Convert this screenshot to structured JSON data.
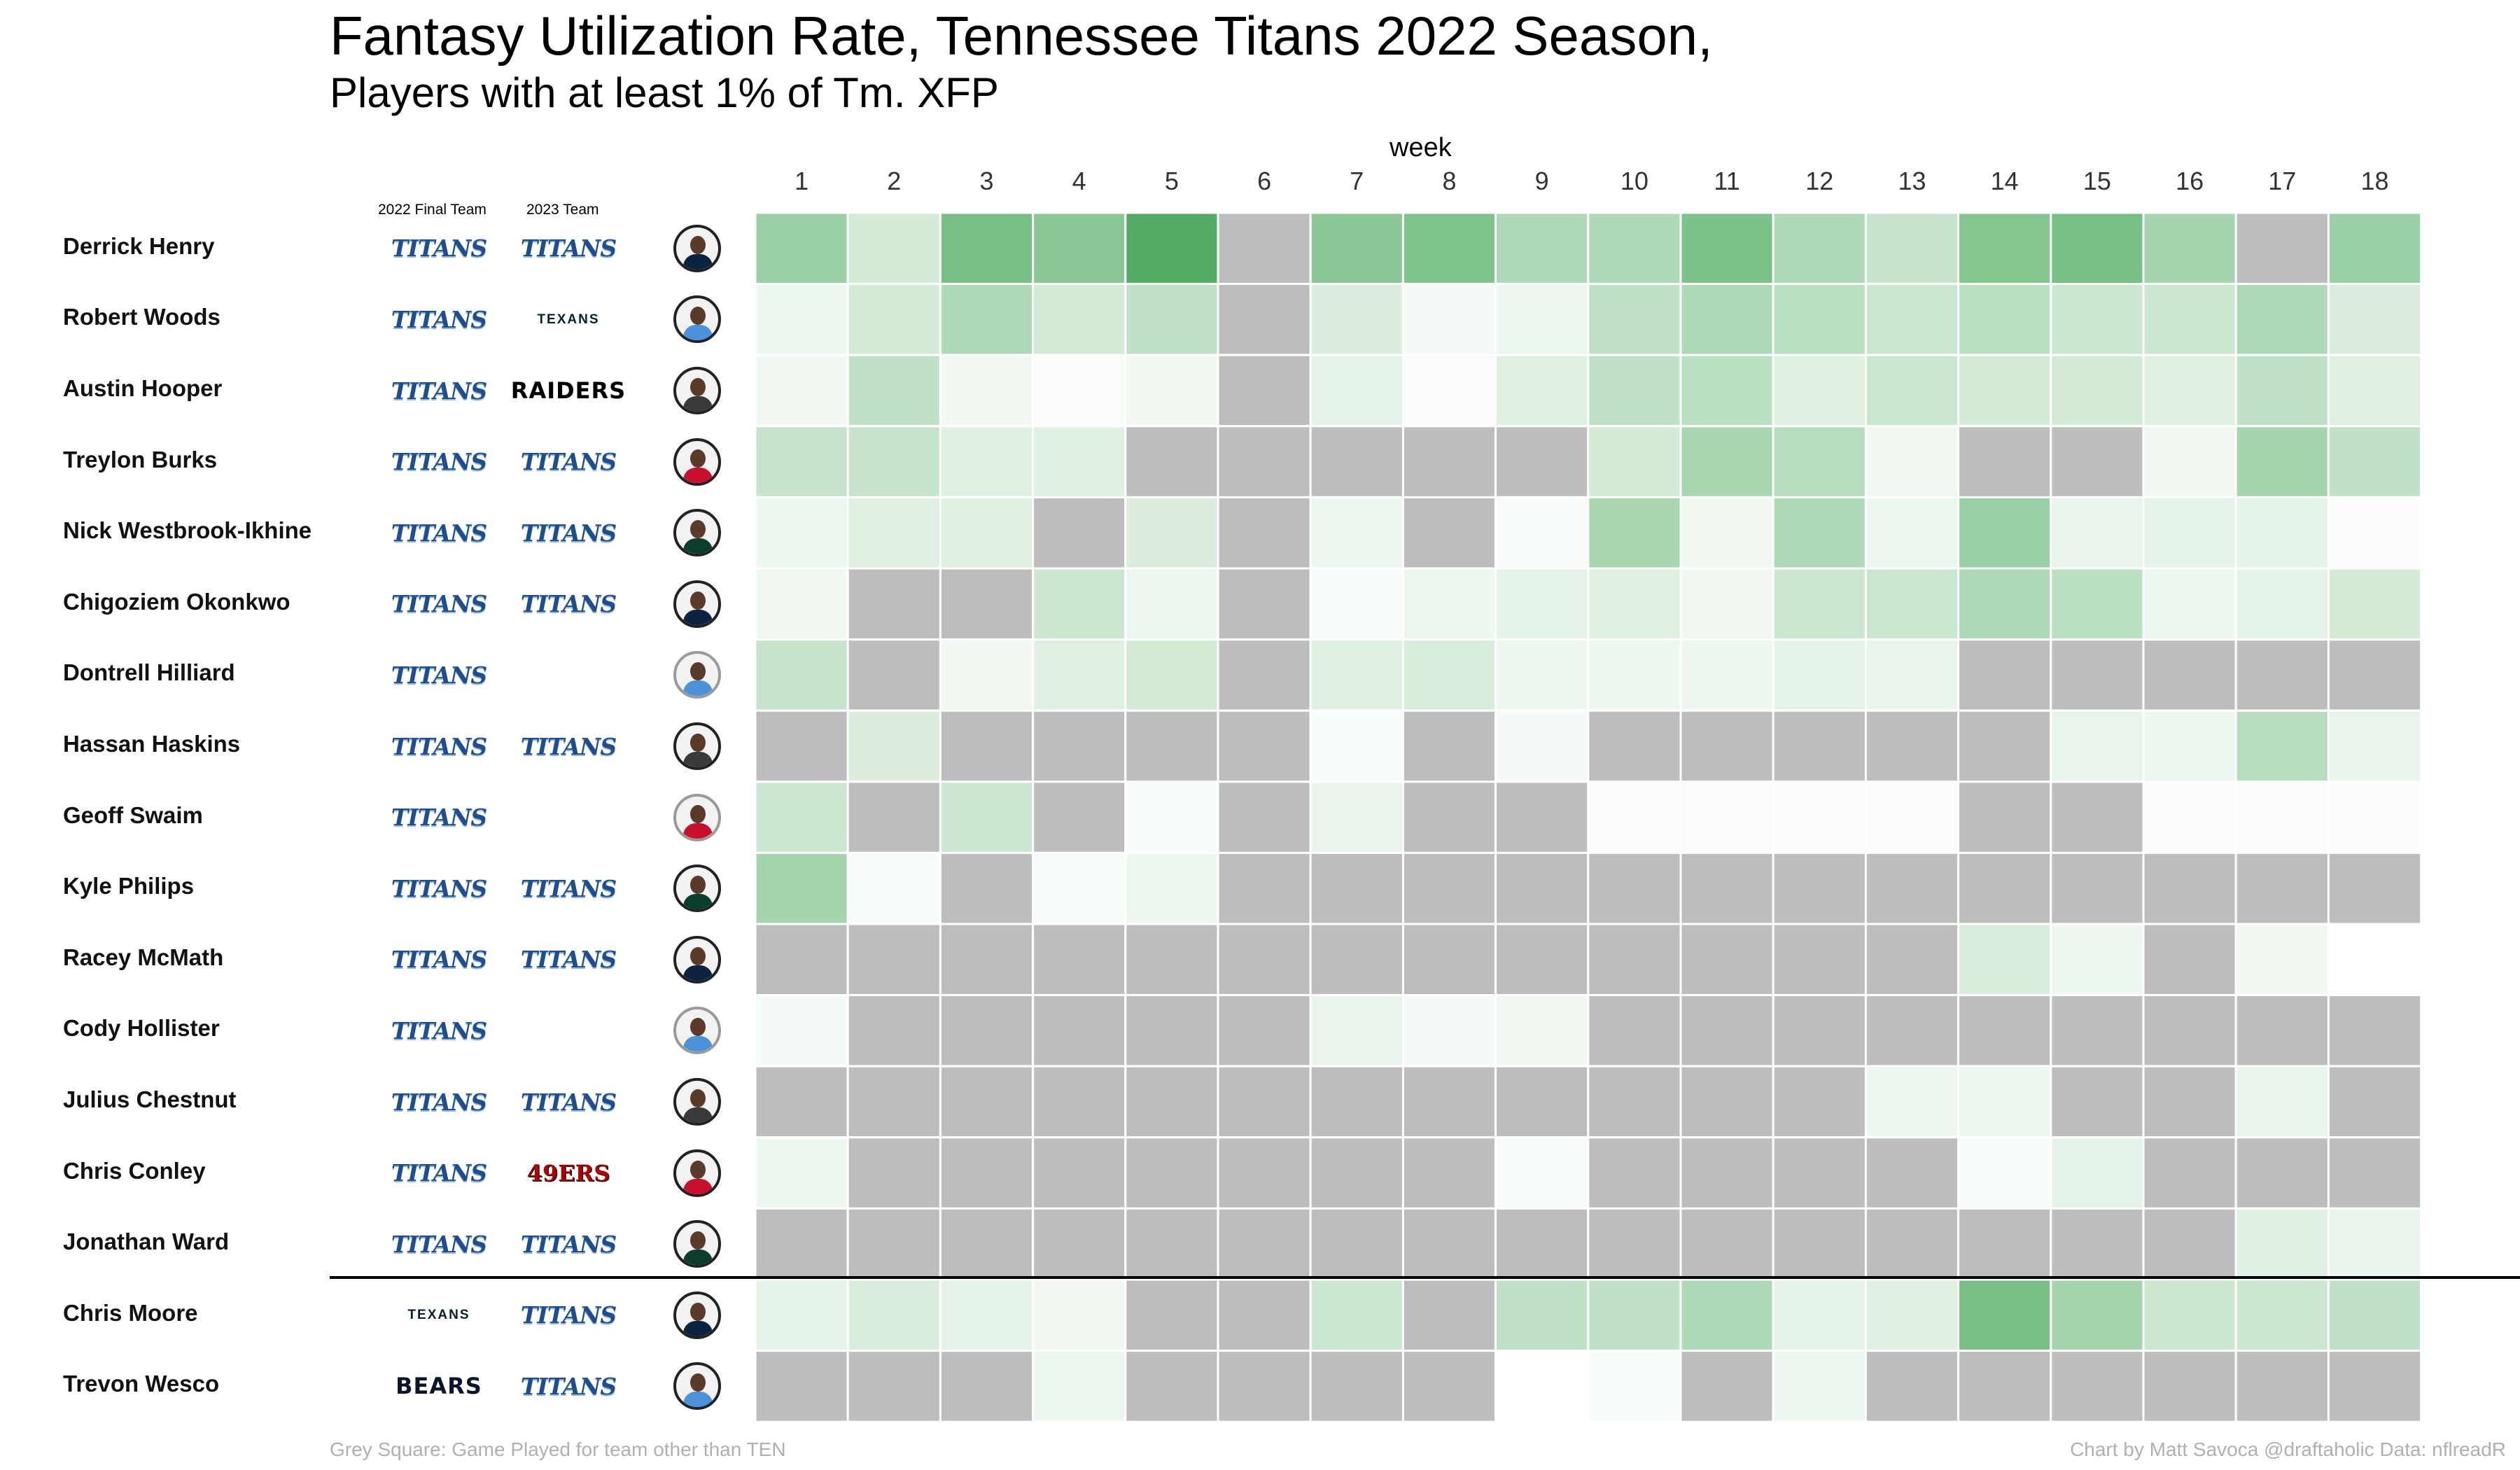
{
  "header": {
    "title": "Fantasy Utilization Rate, Tennessee Titans 2022 Season,",
    "subtitle": "Players with at least 1% of Tm. XFP"
  },
  "columns": {
    "final_team": "2022 Final Team",
    "next_team": "2023 Team"
  },
  "footer": {
    "note": "Grey Square: Game Played for team other than TEN",
    "credit": "Chart by Matt Savoca   @draftaholic   Data: nflreadR"
  },
  "colors": {
    "grey": "#bdbdbd",
    "scale_low": "#ffffff",
    "scale_high": "#4aaa5c",
    "divider": "#000000"
  },
  "chart_data": {
    "type": "heatmap",
    "title": "Fantasy Utilization Rate, Tennessee Titans 2022 Season,",
    "subtitle": "Players with at least 1% of Tm. XFP",
    "xlabel": "week",
    "ylabel": "",
    "x": [
      "1",
      "2",
      "3",
      "4",
      "5",
      "6",
      "7",
      "8",
      "9",
      "10",
      "11",
      "12",
      "13",
      "14",
      "15",
      "16",
      "17",
      "18"
    ],
    "value_scale": "relative utilization 0-1 (null = grey / not TEN)",
    "rows": [
      {
        "player": "Derrick Henry",
        "team_2022": "TITANS",
        "team_2023": "TITANS",
        "values": [
          0.55,
          0.25,
          0.75,
          0.65,
          0.95,
          null,
          0.65,
          0.7,
          0.45,
          0.45,
          0.72,
          0.45,
          0.32,
          0.68,
          0.75,
          0.5,
          null,
          0.55
        ]
      },
      {
        "player": "Robert Woods",
        "team_2022": "TITANS",
        "team_2023": "TEXANS",
        "values": [
          0.1,
          0.25,
          0.45,
          0.25,
          0.35,
          null,
          0.2,
          0.06,
          0.1,
          0.35,
          0.45,
          0.38,
          0.3,
          0.38,
          0.28,
          0.3,
          0.45,
          0.2
        ]
      },
      {
        "player": "Austin Hooper",
        "team_2022": "TITANS",
        "team_2023": "RAIDERS",
        "values": [
          0.08,
          0.35,
          0.08,
          0.03,
          0.08,
          null,
          0.15,
          0.03,
          0.18,
          0.35,
          0.38,
          0.18,
          0.3,
          0.25,
          0.25,
          0.18,
          0.35,
          0.18
        ]
      },
      {
        "player": "Treylon Burks",
        "team_2022": "TITANS",
        "team_2023": "TITANS",
        "values": [
          0.32,
          0.32,
          0.18,
          0.18,
          null,
          null,
          null,
          null,
          null,
          0.25,
          0.48,
          0.4,
          0.08,
          null,
          null,
          0.08,
          0.5,
          0.35
        ]
      },
      {
        "player": "Nick Westbrook-Ikhine",
        "team_2022": "TITANS",
        "team_2023": "TITANS",
        "values": [
          0.1,
          0.18,
          0.18,
          null,
          0.2,
          null,
          0.1,
          null,
          0.05,
          0.48,
          0.08,
          0.45,
          0.1,
          0.55,
          0.12,
          0.15,
          0.15,
          0.03
        ]
      },
      {
        "player": "Chigoziem Okonkwo",
        "team_2022": "TITANS",
        "team_2023": "TITANS",
        "values": [
          0.08,
          null,
          null,
          0.28,
          0.1,
          null,
          0.04,
          0.1,
          0.15,
          0.18,
          0.08,
          0.28,
          0.3,
          0.45,
          0.38,
          0.1,
          0.15,
          0.25
        ]
      },
      {
        "player": "Dontrell Hilliard",
        "team_2022": "TITANS",
        "team_2023": "",
        "values": [
          0.32,
          null,
          0.08,
          0.18,
          0.25,
          null,
          0.18,
          0.22,
          0.1,
          0.1,
          0.1,
          0.15,
          0.12,
          null,
          null,
          null,
          null,
          null
        ]
      },
      {
        "player": "Hassan Haskins",
        "team_2022": "TITANS",
        "team_2023": "TITANS",
        "values": [
          null,
          0.2,
          null,
          null,
          null,
          null,
          0.04,
          null,
          0.06,
          null,
          null,
          null,
          null,
          null,
          0.12,
          0.1,
          0.4,
          0.12
        ]
      },
      {
        "player": "Geoff Swaim",
        "team_2022": "TITANS",
        "team_2023": "",
        "values": [
          0.28,
          null,
          0.28,
          null,
          0.04,
          null,
          0.12,
          null,
          null,
          0.03,
          0.03,
          0.03,
          0.03,
          null,
          null,
          0.03,
          0.03,
          0.03
        ]
      },
      {
        "player": "Kyle Philips",
        "team_2022": "TITANS",
        "team_2023": "TITANS",
        "values": [
          0.5,
          0.04,
          null,
          0.04,
          0.1,
          null,
          null,
          null,
          null,
          null,
          null,
          null,
          null,
          null,
          null,
          null,
          null,
          null
        ]
      },
      {
        "player": "Racey McMath",
        "team_2022": "TITANS",
        "team_2023": "TITANS",
        "values": [
          null,
          null,
          null,
          null,
          null,
          null,
          null,
          null,
          null,
          null,
          null,
          null,
          null,
          0.22,
          0.1,
          null,
          0.08,
          0.0
        ]
      },
      {
        "player": "Cody Hollister",
        "team_2022": "TITANS",
        "team_2023": "",
        "values": [
          0.06,
          null,
          null,
          null,
          null,
          null,
          0.12,
          0.06,
          0.08,
          null,
          null,
          null,
          null,
          null,
          null,
          null,
          null,
          null
        ]
      },
      {
        "player": "Julius Chestnut",
        "team_2022": "TITANS",
        "team_2023": "TITANS",
        "values": [
          null,
          null,
          null,
          null,
          null,
          null,
          null,
          null,
          null,
          null,
          null,
          null,
          0.1,
          0.1,
          null,
          null,
          0.12,
          null
        ]
      },
      {
        "player": "Chris Conley",
        "team_2022": "TITANS",
        "team_2023": "49ERS",
        "values": [
          0.1,
          null,
          null,
          null,
          null,
          null,
          null,
          null,
          0.04,
          null,
          null,
          null,
          null,
          0.04,
          0.15,
          null,
          null,
          null
        ]
      },
      {
        "player": "Jonathan Ward",
        "team_2022": "TITANS",
        "team_2023": "TITANS",
        "values": [
          null,
          null,
          null,
          null,
          null,
          null,
          null,
          null,
          null,
          null,
          null,
          null,
          null,
          null,
          null,
          null,
          0.18,
          0.12
        ]
      },
      {
        "player": "Chris Moore",
        "team_2022": "TEXANS",
        "team_2023": "TITANS",
        "values": [
          0.15,
          0.22,
          0.15,
          0.08,
          null,
          null,
          0.28,
          null,
          0.35,
          0.35,
          0.45,
          0.15,
          0.18,
          0.75,
          0.5,
          0.3,
          0.3,
          0.35
        ]
      },
      {
        "player": "Trevon Wesco",
        "team_2022": "BEARS",
        "team_2023": "TITANS",
        "values": [
          null,
          null,
          null,
          0.1,
          null,
          null,
          null,
          null,
          0.0,
          0.05,
          null,
          0.1,
          null,
          null,
          null,
          null,
          null,
          null
        ]
      }
    ]
  }
}
